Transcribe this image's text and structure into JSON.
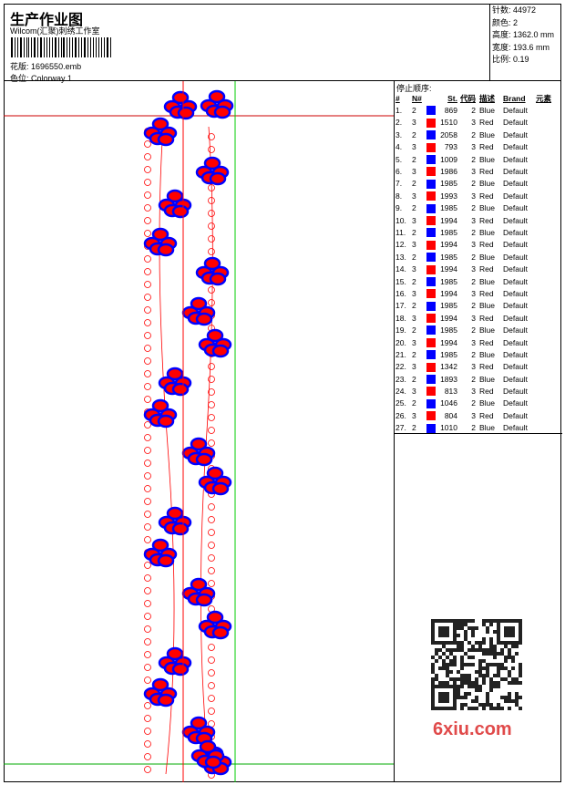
{
  "header": {
    "title": "生产作业图",
    "company": "Wilcom(汇聚)刺绣工作室",
    "design_label": "花版:",
    "design_value": "1696550.emb",
    "colorway_label": "色位:",
    "colorway_value": "Colorway 1"
  },
  "info": [
    {
      "label": "针数:",
      "value": "44972"
    },
    {
      "label": "颜色:",
      "value": "2"
    },
    {
      "label": "高度:",
      "value": "1362.0 mm"
    },
    {
      "label": "宽度:",
      "value": "193.6 mm"
    },
    {
      "label": "比例:",
      "value": "0.19"
    }
  ],
  "stop_sequence": {
    "title": "停止顺序:",
    "columns": [
      "#",
      "N#",
      "St.",
      "代码",
      "描述",
      "Brand",
      "元素"
    ],
    "colors": {
      "Blue": "#0000ff",
      "Red": "#ff0000"
    },
    "rows": [
      [
        "1.",
        "2",
        "869",
        "2",
        "Blue",
        "Default"
      ],
      [
        "2.",
        "3",
        "1510",
        "3",
        "Red",
        "Default"
      ],
      [
        "3.",
        "2",
        "2058",
        "2",
        "Blue",
        "Default"
      ],
      [
        "4.",
        "3",
        "793",
        "3",
        "Red",
        "Default"
      ],
      [
        "5.",
        "2",
        "1009",
        "2",
        "Blue",
        "Default"
      ],
      [
        "6.",
        "3",
        "1986",
        "3",
        "Red",
        "Default"
      ],
      [
        "7.",
        "2",
        "1985",
        "2",
        "Blue",
        "Default"
      ],
      [
        "8.",
        "3",
        "1993",
        "3",
        "Red",
        "Default"
      ],
      [
        "9.",
        "2",
        "1985",
        "2",
        "Blue",
        "Default"
      ],
      [
        "10.",
        "3",
        "1994",
        "3",
        "Red",
        "Default"
      ],
      [
        "11.",
        "2",
        "1985",
        "2",
        "Blue",
        "Default"
      ],
      [
        "12.",
        "3",
        "1994",
        "3",
        "Red",
        "Default"
      ],
      [
        "13.",
        "2",
        "1985",
        "2",
        "Blue",
        "Default"
      ],
      [
        "14.",
        "3",
        "1994",
        "3",
        "Red",
        "Default"
      ],
      [
        "15.",
        "2",
        "1985",
        "2",
        "Blue",
        "Default"
      ],
      [
        "16.",
        "3",
        "1994",
        "3",
        "Red",
        "Default"
      ],
      [
        "17.",
        "2",
        "1985",
        "2",
        "Blue",
        "Default"
      ],
      [
        "18.",
        "3",
        "1994",
        "3",
        "Red",
        "Default"
      ],
      [
        "19.",
        "2",
        "1985",
        "2",
        "Blue",
        "Default"
      ],
      [
        "20.",
        "3",
        "1994",
        "3",
        "Red",
        "Default"
      ],
      [
        "21.",
        "2",
        "1985",
        "2",
        "Blue",
        "Default"
      ],
      [
        "22.",
        "3",
        "1342",
        "3",
        "Red",
        "Default"
      ],
      [
        "23.",
        "2",
        "1893",
        "2",
        "Blue",
        "Default"
      ],
      [
        "24.",
        "3",
        "813",
        "3",
        "Red",
        "Default"
      ],
      [
        "25.",
        "2",
        "1046",
        "2",
        "Blue",
        "Default"
      ],
      [
        "26.",
        "3",
        "804",
        "3",
        "Red",
        "Default"
      ],
      [
        "27.",
        "2",
        "1010",
        "2",
        "Blue",
        "Default"
      ]
    ]
  },
  "watermark": "6xiu.com"
}
